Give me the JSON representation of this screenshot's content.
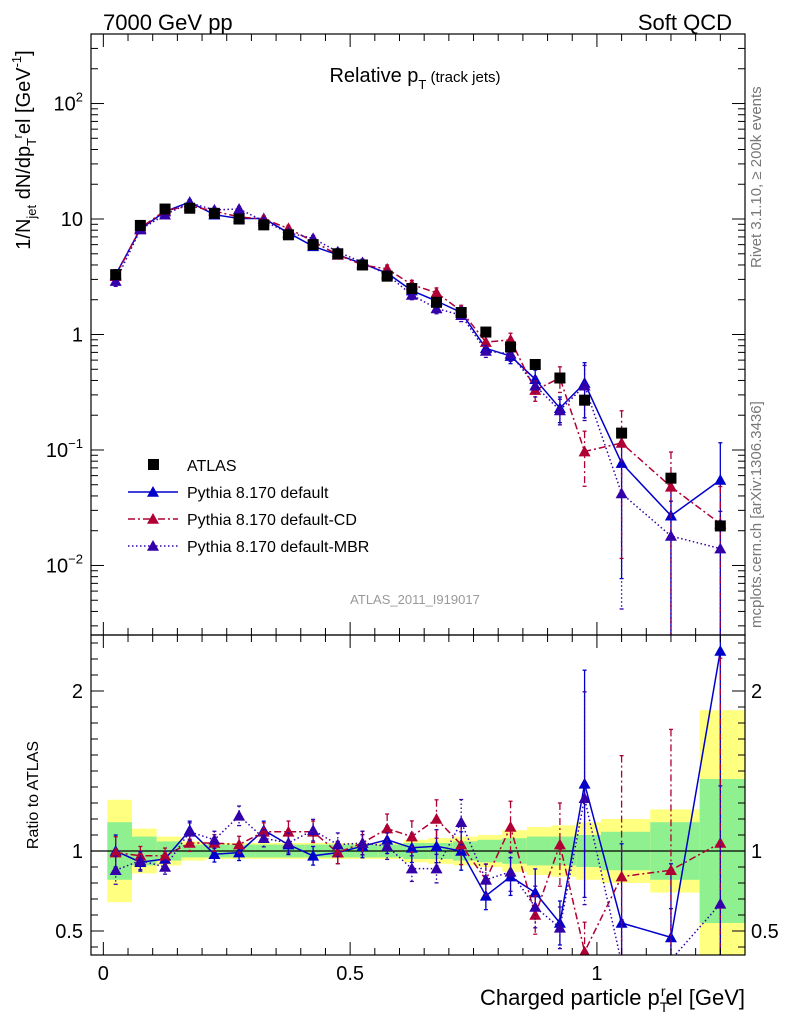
{
  "header": {
    "left": "7000 GeV pp",
    "right": "Soft QCD"
  },
  "side_labels": {
    "rivet": "Rivet 3.1.10, ≥ 200k events",
    "mcplots": "mcplots.cern.ch [arXiv:1306.3436]"
  },
  "analysis_id": "ATLAS_2011_I919017",
  "chart_data": [
    {
      "type": "scatter",
      "panel": "main",
      "title_main": "Relative p",
      "title_sub": "T",
      "title_extra": " (track jets)",
      "ylabel_parts": [
        "1/N",
        "jet",
        " dN/dp",
        "T",
        "r",
        "el [GeV",
        "-1",
        "]"
      ],
      "yscale": "log",
      "ylim": [
        0.0025,
        400
      ],
      "xlim": [
        -0.025,
        1.3
      ],
      "yticks": [
        {
          "v": 0.01,
          "m": "10",
          "e": "−2"
        },
        {
          "v": 0.1,
          "m": "10",
          "e": "−1"
        },
        {
          "v": 1,
          "m": "1",
          "e": ""
        },
        {
          "v": 10,
          "m": "10",
          "e": ""
        },
        {
          "v": 100,
          "m": "10",
          "e": "2"
        }
      ],
      "x": [
        0.025,
        0.075,
        0.125,
        0.175,
        0.225,
        0.275,
        0.325,
        0.375,
        0.425,
        0.475,
        0.525,
        0.575,
        0.625,
        0.675,
        0.725,
        0.775,
        0.825,
        0.875,
        0.925,
        0.975,
        1.05,
        1.15,
        1.25
      ],
      "series": [
        {
          "name": "ATLAS",
          "style": "data",
          "color": "#000000",
          "values": [
            3.3,
            8.8,
            12.2,
            12.4,
            11.2,
            10.0,
            8.9,
            7.3,
            6.0,
            5.0,
            4.0,
            3.2,
            2.5,
            1.9,
            1.55,
            1.05,
            0.78,
            0.55,
            0.42,
            0.27,
            0.14,
            0.057,
            0.022
          ]
        },
        {
          "name": "Pythia 8.170 default",
          "style": "solid",
          "color": "#0000cc",
          "values": [
            3.3,
            8.2,
            11.6,
            14.0,
            10.9,
            10.1,
            10.1,
            7.6,
            5.8,
            4.9,
            4.1,
            3.4,
            2.4,
            1.95,
            1.55,
            0.76,
            0.65,
            0.41,
            0.23,
            0.38,
            0.077,
            0.027,
            0.055
          ]
        },
        {
          "name": "Pythia 8.170 default-CD",
          "style": "dashdot",
          "color": "#b00033",
          "values": [
            3.2,
            8.4,
            11.8,
            13.0,
            11.7,
            10.4,
            10.0,
            8.3,
            6.4,
            4.9,
            4.0,
            3.7,
            2.7,
            2.3,
            1.6,
            0.86,
            0.9,
            0.33,
            0.42,
            0.097,
            0.115,
            0.048,
            0.023
          ]
        },
        {
          "name": "Pythia 8.170 default-MBR",
          "style": "dotted",
          "color": "#3300aa",
          "values": [
            2.9,
            8.1,
            10.9,
            13.8,
            12.0,
            12.2,
            9.6,
            7.6,
            6.8,
            5.2,
            4.2,
            3.3,
            2.2,
            1.68,
            1.47,
            0.72,
            0.68,
            0.36,
            0.22,
            0.36,
            0.042,
            0.018,
            0.014
          ]
        }
      ]
    },
    {
      "type": "scatter",
      "panel": "ratio",
      "ylabel": "Ratio to ATLAS",
      "xlabel_parts": [
        "Charged particle p",
        "T",
        "r",
        "el [GeV]"
      ],
      "ylim": [
        0.35,
        2.35
      ],
      "yticks": [
        0.5,
        1,
        2
      ],
      "ytick_labels": [
        "0.5",
        "1",
        "2"
      ],
      "xticks": [
        0,
        0.5,
        1
      ],
      "xtick_labels": [
        "0",
        "0.5",
        "1"
      ],
      "bins": [
        0,
        0.05,
        0.1,
        0.15,
        0.2,
        0.25,
        0.3,
        0.35,
        0.4,
        0.45,
        0.5,
        0.55,
        0.6,
        0.65,
        0.7,
        0.75,
        0.8,
        0.85,
        0.9,
        0.95,
        1.0,
        1.1,
        1.2,
        1.3
      ],
      "band_inner": [
        0.18,
        0.09,
        0.06,
        0.04,
        0.04,
        0.04,
        0.04,
        0.04,
        0.04,
        0.04,
        0.04,
        0.04,
        0.05,
        0.05,
        0.06,
        0.07,
        0.08,
        0.09,
        0.09,
        0.1,
        0.12,
        0.18,
        0.45
      ],
      "band_outer": [
        0.32,
        0.14,
        0.09,
        0.06,
        0.05,
        0.05,
        0.05,
        0.05,
        0.05,
        0.05,
        0.05,
        0.05,
        0.07,
        0.08,
        0.09,
        0.1,
        0.13,
        0.15,
        0.16,
        0.18,
        0.2,
        0.26,
        0.88
      ],
      "x": [
        0.025,
        0.075,
        0.125,
        0.175,
        0.225,
        0.275,
        0.325,
        0.375,
        0.425,
        0.475,
        0.525,
        0.575,
        0.625,
        0.675,
        0.725,
        0.775,
        0.825,
        0.875,
        0.925,
        0.975,
        1.05,
        1.15,
        1.25
      ],
      "series": [
        {
          "name": "Pythia 8.170 default",
          "style": "solid",
          "color": "#0000cc",
          "values": [
            1.0,
            0.93,
            0.95,
            1.13,
            0.98,
            0.99,
            1.13,
            1.04,
            0.97,
            0.99,
            1.03,
            1.07,
            1.02,
            1.03,
            1.0,
            0.72,
            0.84,
            0.74,
            0.55,
            1.42,
            0.55,
            0.46,
            2.25
          ],
          "errors": [
            0.1,
            0.06,
            0.05,
            0.05,
            0.05,
            0.05,
            0.05,
            0.06,
            0.06,
            0.07,
            0.07,
            0.08,
            0.09,
            0.1,
            0.12,
            0.12,
            0.14,
            0.2,
            0.25,
            0.5,
            0.9,
            1.0,
            1.1
          ]
        },
        {
          "name": "Pythia 8.170 default-CD",
          "style": "dashdot",
          "color": "#b00033",
          "values": [
            0.99,
            0.97,
            0.97,
            1.05,
            1.05,
            1.04,
            1.12,
            1.12,
            1.12,
            0.99,
            1.05,
            1.14,
            1.09,
            1.2,
            1.04,
            0.82,
            1.15,
            0.6,
            1.04,
            0.37,
            0.84,
            0.88,
            1.05
          ],
          "errors": [
            0.1,
            0.06,
            0.05,
            0.05,
            0.05,
            0.05,
            0.05,
            0.06,
            0.06,
            0.07,
            0.07,
            0.08,
            0.09,
            0.1,
            0.12,
            0.12,
            0.14,
            0.2,
            0.25,
            0.5,
            0.9,
            1.0,
            1.1
          ]
        },
        {
          "name": "Pythia 8.170 default-MBR",
          "style": "dotted",
          "color": "#3300aa",
          "values": [
            0.88,
            0.94,
            0.9,
            1.12,
            1.07,
            1.22,
            1.08,
            1.05,
            1.13,
            1.04,
            1.05,
            1.03,
            0.89,
            0.89,
            1.18,
            0.82,
            0.87,
            0.65,
            0.52,
            1.33,
            0.3,
            0.32,
            0.67
          ],
          "errors": [
            0.1,
            0.06,
            0.05,
            0.05,
            0.05,
            0.05,
            0.05,
            0.06,
            0.06,
            0.07,
            0.07,
            0.08,
            0.09,
            0.1,
            0.12,
            0.12,
            0.14,
            0.2,
            0.25,
            0.5,
            0.9,
            1.0,
            1.1
          ]
        }
      ]
    }
  ]
}
